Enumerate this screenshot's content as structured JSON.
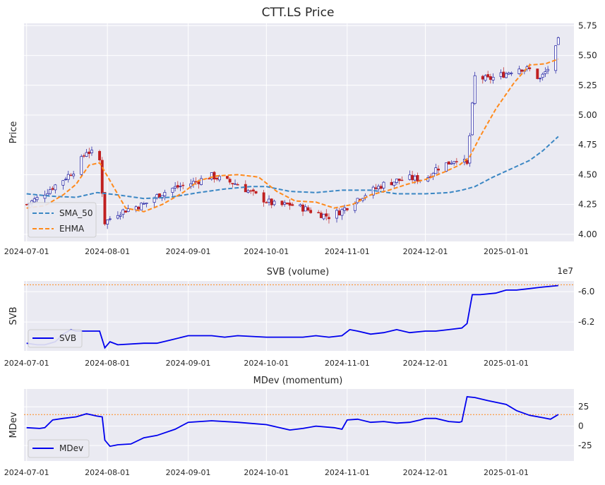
{
  "chart_data": [
    {
      "type": "candlestick",
      "title": "CTT.LS Price",
      "ylabel": "Price",
      "xlim": [
        "2024-06-30",
        "2025-01-27"
      ],
      "ylim": [
        3.94,
        5.77
      ],
      "yticks": [
        "4.00",
        "4.25",
        "4.50",
        "4.75",
        "5.00",
        "5.25",
        "5.50",
        "5.75"
      ],
      "xticks": [
        "2024-07-01",
        "2024-08-01",
        "2024-09-01",
        "2024-10-01",
        "2024-11-01",
        "2024-12-01",
        "2025-01-01"
      ],
      "grid": true,
      "legend_position": "lower-left",
      "close_series_approx": {
        "dates": [
          "2024-07-01",
          "2024-07-05",
          "2024-07-10",
          "2024-07-15",
          "2024-07-20",
          "2024-07-24",
          "2024-07-26",
          "2024-07-29",
          "2024-07-31",
          "2024-08-05",
          "2024-08-10",
          "2024-08-15",
          "2024-08-20",
          "2024-08-25",
          "2024-09-01",
          "2024-09-05",
          "2024-09-10",
          "2024-09-15",
          "2024-09-20",
          "2024-09-25",
          "2024-10-01",
          "2024-10-05",
          "2024-10-10",
          "2024-10-15",
          "2024-10-20",
          "2024-10-25",
          "2024-10-30",
          "2024-11-05",
          "2024-11-10",
          "2024-11-15",
          "2024-11-20",
          "2024-11-25",
          "2024-12-01",
          "2024-12-05",
          "2024-12-10",
          "2024-12-14",
          "2024-12-17",
          "2024-12-20",
          "2024-12-25",
          "2025-01-01",
          "2025-01-05",
          "2025-01-10",
          "2025-01-14",
          "2025-01-18",
          "2025-01-21"
        ],
        "values": [
          4.25,
          4.3,
          4.38,
          4.46,
          4.55,
          4.7,
          4.68,
          4.62,
          4.1,
          4.18,
          4.22,
          4.25,
          4.32,
          4.38,
          4.42,
          4.45,
          4.49,
          4.45,
          4.42,
          4.35,
          4.28,
          4.24,
          4.25,
          4.22,
          4.18,
          4.15,
          4.2,
          4.3,
          4.36,
          4.42,
          4.45,
          4.47,
          4.46,
          4.55,
          4.6,
          4.65,
          4.58,
          5.32,
          5.3,
          5.35,
          5.4,
          5.38,
          5.3,
          5.42,
          5.62
        ]
      },
      "series": [
        {
          "name": "SMA_50",
          "color": "#3b87c4",
          "dates": [
            "2024-07-01",
            "2024-07-10",
            "2024-07-20",
            "2024-07-28",
            "2024-08-05",
            "2024-08-15",
            "2024-08-25",
            "2024-09-05",
            "2024-09-15",
            "2024-09-25",
            "2024-10-01",
            "2024-10-10",
            "2024-10-20",
            "2024-10-30",
            "2024-11-10",
            "2024-11-20",
            "2024-12-01",
            "2024-12-10",
            "2024-12-15",
            "2024-12-20",
            "2024-12-27",
            "2025-01-03",
            "2025-01-10",
            "2025-01-15",
            "2025-01-21"
          ],
          "values": [
            4.34,
            4.32,
            4.31,
            4.35,
            4.33,
            4.3,
            4.31,
            4.35,
            4.38,
            4.4,
            4.4,
            4.36,
            4.35,
            4.37,
            4.37,
            4.34,
            4.34,
            4.35,
            4.37,
            4.4,
            4.48,
            4.55,
            4.62,
            4.7,
            4.82
          ]
        },
        {
          "name": "EHMA",
          "color": "#ff8a1c",
          "dates": [
            "2024-07-01",
            "2024-07-08",
            "2024-07-15",
            "2024-07-20",
            "2024-07-25",
            "2024-07-29",
            "2024-08-02",
            "2024-08-08",
            "2024-08-15",
            "2024-08-22",
            "2024-08-30",
            "2024-09-05",
            "2024-09-12",
            "2024-09-20",
            "2024-09-28",
            "2024-10-05",
            "2024-10-12",
            "2024-10-20",
            "2024-10-27",
            "2024-11-03",
            "2024-11-10",
            "2024-11-17",
            "2024-11-24",
            "2024-12-01",
            "2024-12-08",
            "2024-12-14",
            "2024-12-18",
            "2024-12-22",
            "2024-12-28",
            "2025-01-04",
            "2025-01-10",
            "2025-01-16",
            "2025-01-21"
          ],
          "values": [
            4.22,
            4.24,
            4.33,
            4.42,
            4.58,
            4.6,
            4.45,
            4.22,
            4.19,
            4.25,
            4.35,
            4.45,
            4.49,
            4.5,
            4.48,
            4.36,
            4.28,
            4.27,
            4.22,
            4.25,
            4.33,
            4.37,
            4.42,
            4.46,
            4.52,
            4.58,
            4.65,
            4.82,
            5.05,
            5.27,
            5.42,
            5.43,
            5.47
          ]
        }
      ]
    },
    {
      "type": "line",
      "title": "SVB (volume)",
      "ylabel": "SVB",
      "offset_label": "1e7",
      "ylim": [
        -63.9,
        -59.3
      ],
      "yticks": [
        "-6.0",
        "-6.2"
      ],
      "yticks_values": [
        -60,
        -62
      ],
      "reference_line": {
        "value": -59.55,
        "color": "#ff8a1c"
      },
      "xticks": [
        "2024-07-01",
        "2024-08-01",
        "2024-09-01",
        "2024-10-01",
        "2024-11-01",
        "2024-12-01",
        "2025-01-01"
      ],
      "legend_position": "lower-left",
      "series": [
        {
          "name": "SVB",
          "color": "#0000ee",
          "units": "x 1e6",
          "dates": [
            "2024-07-01",
            "2024-07-05",
            "2024-07-08",
            "2024-07-12",
            "2024-07-15",
            "2024-07-18",
            "2024-07-20",
            "2024-07-25",
            "2024-07-29",
            "2024-07-31",
            "2024-08-02",
            "2024-08-05",
            "2024-08-15",
            "2024-08-20",
            "2024-08-25",
            "2024-09-01",
            "2024-09-10",
            "2024-09-15",
            "2024-09-20",
            "2024-10-01",
            "2024-10-10",
            "2024-10-15",
            "2024-10-20",
            "2024-10-25",
            "2024-10-30",
            "2024-11-02",
            "2024-11-05",
            "2024-11-10",
            "2024-11-15",
            "2024-11-20",
            "2024-11-25",
            "2024-12-01",
            "2024-12-05",
            "2024-12-10",
            "2024-12-15",
            "2024-12-17",
            "2024-12-19",
            "2024-12-22",
            "2024-12-28",
            "2025-01-01",
            "2025-01-05",
            "2025-01-10",
            "2025-01-15",
            "2025-01-21"
          ],
          "values": [
            -63.4,
            -63.5,
            -63.5,
            -63.3,
            -62.8,
            -62.5,
            -62.6,
            -62.6,
            -62.6,
            -63.7,
            -63.3,
            -63.5,
            -63.4,
            -63.4,
            -63.2,
            -62.9,
            -62.9,
            -63.0,
            -62.9,
            -63.0,
            -63.0,
            -63.0,
            -62.9,
            -63.0,
            -62.9,
            -62.5,
            -62.6,
            -62.8,
            -62.7,
            -62.5,
            -62.7,
            -62.6,
            -62.6,
            -62.5,
            -62.4,
            -62.1,
            -60.2,
            -60.2,
            -60.1,
            -59.9,
            -59.9,
            -59.8,
            -59.7,
            -59.6
          ]
        }
      ]
    },
    {
      "type": "line",
      "title": "MDev (momentum)",
      "ylabel": "MDev",
      "ylim": [
        -45,
        48
      ],
      "yticks": [
        "25",
        "0",
        "-25"
      ],
      "yticks_values": [
        25,
        0,
        -25
      ],
      "reference_line": {
        "value": 15,
        "color": "#ff8a1c"
      },
      "xticks": [
        "2024-07-01",
        "2024-08-01",
        "2024-09-01",
        "2024-10-01",
        "2024-11-01",
        "2024-12-01",
        "2025-01-01"
      ],
      "legend_position": "lower-left",
      "series": [
        {
          "name": "MDev",
          "color": "#0000ee",
          "dates": [
            "2024-07-01",
            "2024-07-06",
            "2024-07-08",
            "2024-07-11",
            "2024-07-15",
            "2024-07-20",
            "2024-07-24",
            "2024-07-28",
            "2024-07-30",
            "2024-07-31",
            "2024-08-02",
            "2024-08-05",
            "2024-08-10",
            "2024-08-15",
            "2024-08-20",
            "2024-08-27",
            "2024-09-01",
            "2024-09-10",
            "2024-09-20",
            "2024-10-01",
            "2024-10-10",
            "2024-10-15",
            "2024-10-20",
            "2024-10-27",
            "2024-10-30",
            "2024-11-01",
            "2024-11-05",
            "2024-11-10",
            "2024-11-15",
            "2024-11-20",
            "2024-11-25",
            "2024-11-29",
            "2024-12-01",
            "2024-12-05",
            "2024-12-10",
            "2024-12-14",
            "2024-12-15",
            "2024-12-17",
            "2024-12-20",
            "2024-12-25",
            "2025-01-01",
            "2025-01-05",
            "2025-01-10",
            "2025-01-15",
            "2025-01-18",
            "2025-01-21"
          ],
          "values": [
            -2,
            -3,
            -2,
            8,
            10,
            12,
            16,
            13,
            12,
            -18,
            -26,
            -24,
            -23,
            -15,
            -12,
            -4,
            5,
            7,
            5,
            2,
            -5,
            -3,
            0,
            -2,
            -4,
            8,
            9,
            5,
            6,
            4,
            5,
            8,
            10,
            10,
            6,
            5,
            6,
            38,
            37,
            33,
            28,
            20,
            14,
            11,
            9,
            15
          ]
        }
      ]
    }
  ]
}
